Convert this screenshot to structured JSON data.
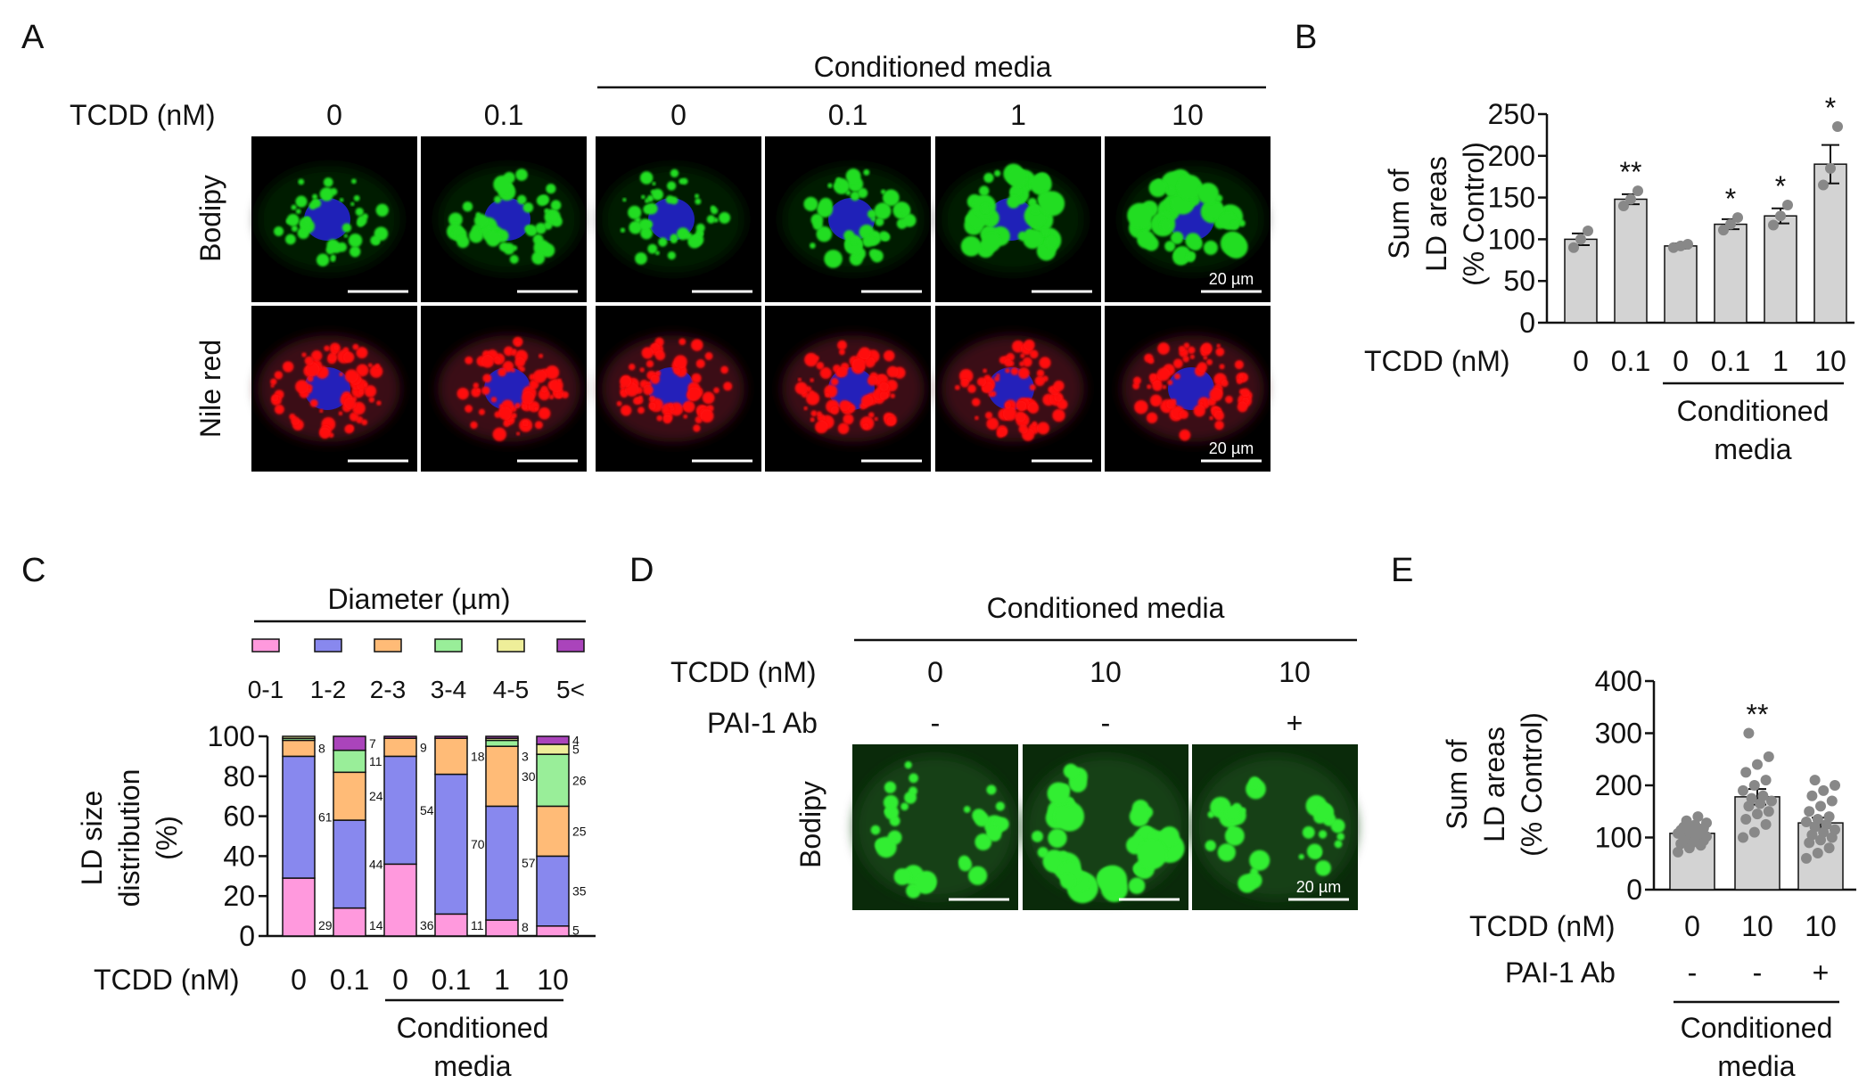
{
  "panel_letters": {
    "A": "A",
    "B": "B",
    "C": "C",
    "D": "D",
    "E": "E"
  },
  "panelA": {
    "tcdd_label": "TCDD (nM)",
    "group_label": "Conditioned media",
    "columns": [
      "0",
      "0.1",
      "0",
      "0.1",
      "1",
      "10"
    ],
    "row_labels": [
      "Bodipy",
      "Nile red"
    ],
    "scalebar": "20 µm",
    "colors": {
      "lipid_green": "#22dd22",
      "lipid_red": "#ff1010",
      "nucleus_blue": "#2222cc"
    }
  },
  "panelB": {
    "ylabel_lines": [
      "Sum of",
      "LD areas",
      "(% Control)"
    ],
    "tcdd_label": "TCDD (nM)",
    "group_label_lines": [
      "Conditioned",
      "media"
    ],
    "chart_data": {
      "type": "bar",
      "categories": [
        "0",
        "0.1",
        "0",
        "0.1",
        "1",
        "10"
      ],
      "values": [
        100,
        148,
        92,
        118,
        128,
        190
      ],
      "errors": [
        7,
        6,
        3,
        6,
        9,
        23
      ],
      "points": [
        [
          90,
          100,
          110
        ],
        [
          140,
          148,
          158
        ],
        [
          90,
          92,
          94
        ],
        [
          111,
          118,
          126
        ],
        [
          117,
          128,
          141
        ],
        [
          165,
          185,
          235
        ]
      ],
      "significance": [
        "",
        "**",
        "",
        "*",
        "*",
        "*"
      ],
      "ylim": [
        0,
        250
      ],
      "yticks": [
        0,
        50,
        100,
        150,
        200,
        250
      ],
      "bar_color": "#d3d3d3"
    }
  },
  "panelC": {
    "legend_title": "Diameter (µm)",
    "ylabel_lines": [
      "LD size",
      "distribution",
      "(%)"
    ],
    "tcdd_label": "TCDD (nM)",
    "group_label_lines": [
      "Conditioned",
      "media"
    ],
    "chart_data": {
      "type": "bar",
      "stacked": true,
      "categories": [
        "0",
        "0.1",
        "0",
        "0.1",
        "1",
        "10"
      ],
      "series": [
        {
          "name": "0-1",
          "color": "#ff99dd",
          "values": [
            29,
            14,
            36,
            11,
            8,
            5
          ]
        },
        {
          "name": "1-2",
          "color": "#8888ee",
          "values": [
            61,
            44,
            54,
            70,
            57,
            35
          ]
        },
        {
          "name": "2-3",
          "color": "#ffbb77",
          "values": [
            8,
            24,
            9,
            18,
            30,
            25
          ]
        },
        {
          "name": "3-4",
          "color": "#99ee99",
          "values": [
            1,
            11,
            0,
            0,
            3,
            26
          ]
        },
        {
          "name": "4-5",
          "color": "#eeee99",
          "values": [
            1,
            0,
            0,
            0,
            1,
            5
          ]
        },
        {
          "name": "5<",
          "color": "#aa44bb",
          "values": [
            0,
            7,
            1,
            1,
            1,
            4
          ]
        }
      ],
      "labels": [
        [
          {
            "series": 0,
            "text": "29"
          },
          {
            "series": 1,
            "text": "61"
          },
          {
            "series": 2,
            "text": "8"
          }
        ],
        [
          {
            "series": 0,
            "text": "14"
          },
          {
            "series": 1,
            "text": "44"
          },
          {
            "series": 2,
            "text": "24"
          },
          {
            "series": 3,
            "text": "11"
          },
          {
            "series": 5,
            "text": "7"
          }
        ],
        [
          {
            "series": 0,
            "text": "36"
          },
          {
            "series": 1,
            "text": "54"
          },
          {
            "series": 2,
            "text": "9"
          }
        ],
        [
          {
            "series": 0,
            "text": "11"
          },
          {
            "series": 1,
            "text": "70"
          },
          {
            "series": 2,
            "text": "18"
          }
        ],
        [
          {
            "series": 0,
            "text": "8"
          },
          {
            "series": 1,
            "text": "57"
          },
          {
            "series": 2,
            "text": "30"
          },
          {
            "series": 3,
            "text": "3"
          }
        ],
        [
          {
            "series": 0,
            "text": "5"
          },
          {
            "series": 1,
            "text": "35"
          },
          {
            "series": 2,
            "text": "25"
          },
          {
            "series": 3,
            "text": "26"
          },
          {
            "series": 4,
            "text": "5"
          },
          {
            "series": 5,
            "text": "4"
          }
        ]
      ],
      "ylim": [
        0,
        100
      ],
      "yticks": [
        0,
        20,
        40,
        60,
        80,
        100
      ]
    }
  },
  "panelD": {
    "group_label": "Conditioned media",
    "tcdd_label": "TCDD (nM)",
    "pai_label": "PAI-1 Ab",
    "tcdd_values": [
      "0",
      "10",
      "10"
    ],
    "pai_values": [
      "-",
      "-",
      "+"
    ],
    "row_label": "Bodipy",
    "scalebar": "20 µm"
  },
  "panelE": {
    "ylabel_lines": [
      "Sum of",
      "LD areas",
      "(% Control)"
    ],
    "tcdd_label": "TCDD (nM)",
    "pai_label": "PAI-1 Ab",
    "pai_values": [
      "-",
      "-",
      "+"
    ],
    "group_label_lines": [
      "Conditioned",
      "media"
    ],
    "chart_data": {
      "type": "bar",
      "categories": [
        "0",
        "10",
        "10"
      ],
      "values": [
        108,
        178,
        128
      ],
      "errors": [
        7,
        15,
        10
      ],
      "points": [
        [
          72,
          80,
          85,
          88,
          90,
          94,
          96,
          100,
          102,
          104,
          106,
          108,
          110,
          112,
          114,
          116,
          118,
          120,
          124,
          128,
          132,
          140
        ],
        [
          100,
          110,
          125,
          135,
          145,
          150,
          160,
          165,
          170,
          175,
          180,
          190,
          200,
          210,
          225,
          240,
          255,
          300
        ],
        [
          60,
          70,
          80,
          90,
          95,
          100,
          105,
          110,
          115,
          120,
          125,
          130,
          135,
          140,
          150,
          160,
          170,
          180,
          190,
          200,
          210
        ]
      ],
      "significance": [
        "",
        "**",
        ""
      ],
      "ylim": [
        0,
        400
      ],
      "yticks": [
        0,
        100,
        200,
        300,
        400
      ],
      "bar_color": "#d3d3d3"
    }
  }
}
